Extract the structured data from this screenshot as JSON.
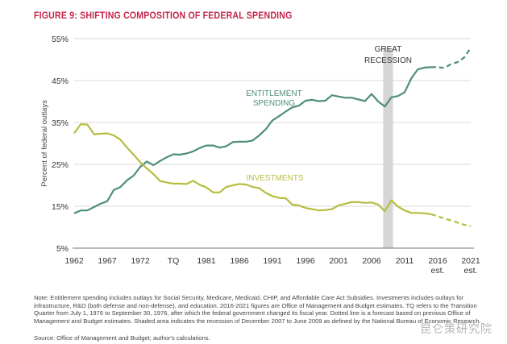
{
  "figure_title": "FIGURE 9: SHIFTING COMPOSITION OF FEDERAL SPENDING",
  "colors": {
    "title": "#c4264a",
    "entitlement": "#4e8e7c",
    "investments": "#b6bd3f",
    "recession_band": "#d6d6d6",
    "grid": "#d8d8d8"
  },
  "chart_data": {
    "type": "line",
    "title": "FIGURE 9: SHIFTING COMPOSITION OF FEDERAL SPENDING",
    "ylabel": "Percent of federal outlays",
    "xlabel": "",
    "ylim": [
      5,
      55
    ],
    "yticks": [
      5,
      15,
      25,
      35,
      45,
      55
    ],
    "ytick_labels": [
      "5%",
      "15%",
      "25%",
      "35%",
      "45%",
      "55%"
    ],
    "x_categories": [
      "1962",
      "1963",
      "1964",
      "1965",
      "1966",
      "1967",
      "1968",
      "1969",
      "1970",
      "1971",
      "1972",
      "1973",
      "1974",
      "1975",
      "1976",
      "TQ",
      "1977",
      "1978",
      "1979",
      "1980",
      "1981",
      "1982",
      "1983",
      "1984",
      "1985",
      "1986",
      "1987",
      "1988",
      "1989",
      "1990",
      "1991",
      "1992",
      "1993",
      "1994",
      "1995",
      "1996",
      "1997",
      "1998",
      "1999",
      "2000",
      "2001",
      "2002",
      "2003",
      "2004",
      "2005",
      "2006",
      "2007",
      "2008",
      "2009",
      "2010",
      "2011",
      "2012",
      "2013",
      "2014",
      "2015",
      "2016",
      "2017",
      "2018",
      "2019",
      "2020",
      "2021"
    ],
    "xtick_labels": [
      {
        "label": "1962",
        "sub": ""
      },
      {
        "label": "1967",
        "sub": ""
      },
      {
        "label": "1972",
        "sub": ""
      },
      {
        "label": "TQ",
        "sub": ""
      },
      {
        "label": "1981",
        "sub": ""
      },
      {
        "label": "1986",
        "sub": ""
      },
      {
        "label": "1991",
        "sub": ""
      },
      {
        "label": "1996",
        "sub": ""
      },
      {
        "label": "2001",
        "sub": ""
      },
      {
        "label": "2006",
        "sub": ""
      },
      {
        "label": "2011",
        "sub": ""
      },
      {
        "label": "2016",
        "sub": "est."
      },
      {
        "label": "2021",
        "sub": "est."
      }
    ],
    "forecast_start": "2015",
    "recession": {
      "from": "2008",
      "to": "2009",
      "label_line1": "GREAT",
      "label_line2": "RECESSION"
    },
    "series": [
      {
        "name": "Entitlement spending",
        "label_line1": "ENTITLEMENT",
        "label_line2": "SPENDING",
        "values": [
          13.3,
          14.0,
          14.0,
          14.8,
          15.6,
          16.2,
          18.9,
          19.6,
          21.2,
          22.3,
          24.4,
          25.7,
          24.8,
          25.8,
          26.7,
          27.4,
          27.3,
          27.6,
          28.1,
          28.9,
          29.5,
          29.5,
          29.0,
          29.3,
          30.3,
          30.4,
          30.4,
          30.7,
          31.9,
          33.4,
          35.5,
          36.5,
          37.6,
          38.6,
          39.0,
          40.2,
          40.4,
          40.1,
          40.2,
          41.5,
          41.2,
          40.9,
          40.9,
          40.5,
          40.1,
          41.8,
          40.0,
          38.8,
          41.0,
          41.3,
          42.2,
          45.5,
          47.7,
          48.1,
          48.2,
          48.2,
          48.0,
          48.9,
          49.4,
          50.5,
          52.8
        ]
      },
      {
        "name": "Investments",
        "label_line1": "INVESTMENTS",
        "label_line2": "",
        "values": [
          32.4,
          34.6,
          34.5,
          32.2,
          32.3,
          32.4,
          31.9,
          30.9,
          29.0,
          27.3,
          25.5,
          24.0,
          22.7,
          21.0,
          20.7,
          20.4,
          20.4,
          20.3,
          21.1,
          20.1,
          19.5,
          18.3,
          18.3,
          19.6,
          20.0,
          20.3,
          20.2,
          19.6,
          19.3,
          18.2,
          17.4,
          17.0,
          16.9,
          15.4,
          15.2,
          14.6,
          14.3,
          14.0,
          14.1,
          14.3,
          15.2,
          15.6,
          16.0,
          16.0,
          15.8,
          15.9,
          15.4,
          13.8,
          16.4,
          14.9,
          14.0,
          13.4,
          13.4,
          13.3,
          13.1,
          12.6,
          12.1,
          11.6,
          11.1,
          10.6,
          10.2
        ]
      }
    ]
  },
  "note": "Note: Entitlement spending includes outlays for Social Security, Medicare, Medicaid, CHIP, and Affordable Care Act Subsidies. Investments includes outlays for infrastructure, R&D (both defense and non-defense), and education. 2016-2021 figures are Office of Management and Budget estimates. TQ refers to the Transition Quarter from July 1, 1976 to September 30, 1976, after which the federal government changed its fiscal year. Dotted line is a forecast based on previous Office of Management and Budget estimates. Shaded area indicates the recession of December 2007 to June 2009 as defined by the National Bureau of Economic Research.",
  "source": "Source: Office of Management and Budget; author's calculations.",
  "watermark": "昆仑策研究院"
}
